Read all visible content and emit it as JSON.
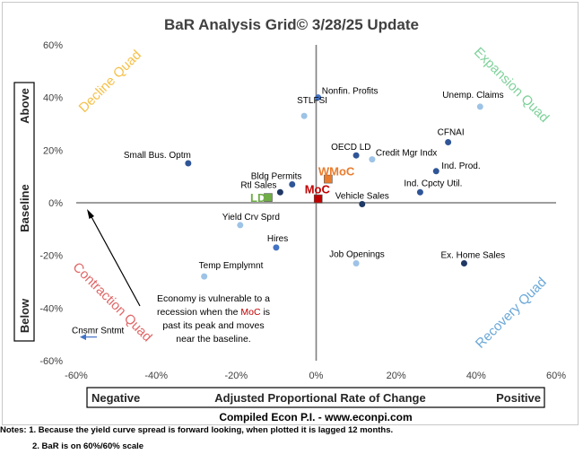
{
  "chart_data": {
    "type": "scatter",
    "title": "BaR Analysis Grid© 3/28/25 Update",
    "xlim": [
      -60,
      60
    ],
    "ylim": [
      -60,
      60
    ],
    "x_ticks": [
      "-60%",
      "-40%",
      "-20%",
      "0%",
      "20%",
      "40%",
      "60%"
    ],
    "y_ticks": [
      "60%",
      "40%",
      "20%",
      "0%",
      "-20%",
      "-40%",
      "-60%"
    ],
    "x_axis_box": {
      "left": "Negative",
      "center": "Adjusted Proportional Rate of Change",
      "right": "Positive"
    },
    "y_axis_box": {
      "top": "Above",
      "middle": "Baseline",
      "bottom": "Below"
    },
    "grid": false,
    "quadrants": [
      {
        "label": "Decline Quad",
        "color": "#f5c04a"
      },
      {
        "label": "Expansion Quad",
        "color": "#7ed19a"
      },
      {
        "label": "Contraction Quad",
        "color": "#e06666"
      },
      {
        "label": "Recovery Quad",
        "color": "#6aa7d8"
      }
    ],
    "points": [
      {
        "label": "Nonfin. Profits",
        "x": 0.5,
        "y": 40,
        "color": "#4472c4"
      },
      {
        "label": "STLFSI",
        "x": -3,
        "y": 33,
        "color": "#9dc3e6"
      },
      {
        "label": "Unemp. Claims",
        "x": 41,
        "y": 36.5,
        "color": "#9dc3e6"
      },
      {
        "label": "CFNAI",
        "x": 33,
        "y": 23,
        "color": "#2f5597"
      },
      {
        "label": "Small Bus. Optm",
        "x": -32,
        "y": 15,
        "color": "#2f5597"
      },
      {
        "label": "OECD LD",
        "x": 10,
        "y": 18,
        "color": "#2f5597"
      },
      {
        "label": "Credit Mgr Indx",
        "x": 14,
        "y": 16.5,
        "color": "#9dc3e6"
      },
      {
        "label": "Ind. Prod.",
        "x": 30,
        "y": 12,
        "color": "#2f5597"
      },
      {
        "label": "Bldg Permits",
        "x": -6,
        "y": 7,
        "color": "#2f5597"
      },
      {
        "label": "Rtl Sales",
        "x": -9,
        "y": 4,
        "color": "#1f3864"
      },
      {
        "label": "Ind. Cpcty Util.",
        "x": 26,
        "y": 4,
        "color": "#2f5597"
      },
      {
        "label": "Vehicle Sales",
        "x": 11.5,
        "y": -0.5,
        "color": "#1f3864"
      },
      {
        "label": "Yield Crv Sprd",
        "x": -19,
        "y": -8.5,
        "color": "#9dc3e6"
      },
      {
        "label": "Hires",
        "x": -10,
        "y": -17,
        "color": "#4472c4"
      },
      {
        "label": "Temp Emplymnt",
        "x": -28,
        "y": -28,
        "color": "#9dc3e6"
      },
      {
        "label": "Job Openings",
        "x": 10,
        "y": -23,
        "color": "#9dc3e6"
      },
      {
        "label": "Ex. Home Sales",
        "x": 37,
        "y": -23,
        "color": "#1f3864"
      }
    ],
    "highlights": [
      {
        "label": "WMoC",
        "x": 3,
        "y": 9,
        "color": "#e97c2e"
      },
      {
        "label": "MoC",
        "x": 0.5,
        "y": 1.5,
        "color": "#c00000"
      },
      {
        "label": "LD",
        "x": -12,
        "y": 2,
        "color": "#70ad47"
      }
    ],
    "offscale": {
      "label": "Cnsmr Sntmt"
    },
    "annotation": {
      "lines": [
        "Economy is vulnerable to a",
        "recession when the MoC is",
        "past its peak and moves",
        "near the baseline."
      ],
      "highlight_word": "MoC"
    }
  },
  "footer": {
    "credit": "Compiled Econ P.I. - www.econpi.com",
    "note1": "Notes: 1. Because the yield curve spread is forward looking, when plotted it is lagged 12 months.",
    "note2": "2. BaR is on 60%/60% scale"
  }
}
